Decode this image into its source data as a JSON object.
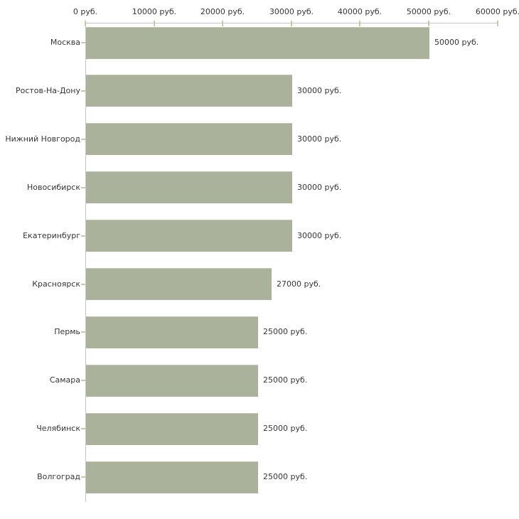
{
  "chart_data": {
    "type": "bar",
    "orientation": "horizontal",
    "title": "",
    "xlabel": "",
    "ylabel": "",
    "categories": [
      "Москва",
      "Ростов-На-Дону",
      "Нижний Новгород",
      "Новосибирск",
      "Екатеринбург",
      "Красноярск",
      "Пермь",
      "Самара",
      "Челябинск",
      "Волгоград"
    ],
    "values": [
      50000,
      30000,
      30000,
      30000,
      30000,
      27000,
      25000,
      25000,
      25000,
      25000
    ],
    "value_labels": [
      "50000 руб.",
      "30000 руб.",
      "30000 руб.",
      "30000 руб.",
      "30000 руб.",
      "27000 руб.",
      "25000 руб.",
      "25000 руб.",
      "25000 руб.",
      "25000 руб."
    ],
    "x_ticks": [
      0,
      10000,
      20000,
      30000,
      40000,
      50000,
      60000
    ],
    "x_tick_labels": [
      "0 руб.",
      "10000 руб.",
      "20000 руб.",
      "30000 руб.",
      "40000 руб.",
      "50000 руб.",
      "60000 руб."
    ],
    "xlim": [
      0,
      60000
    ],
    "grid": false,
    "legend": false,
    "colors": {
      "bar_fill": "#abb29b",
      "bar_edge": "#c1c6b1",
      "axis_line": "#c4c4c4",
      "tick_mark": "#ccc8a3",
      "text": "#363636",
      "background": "#ffffff"
    }
  }
}
